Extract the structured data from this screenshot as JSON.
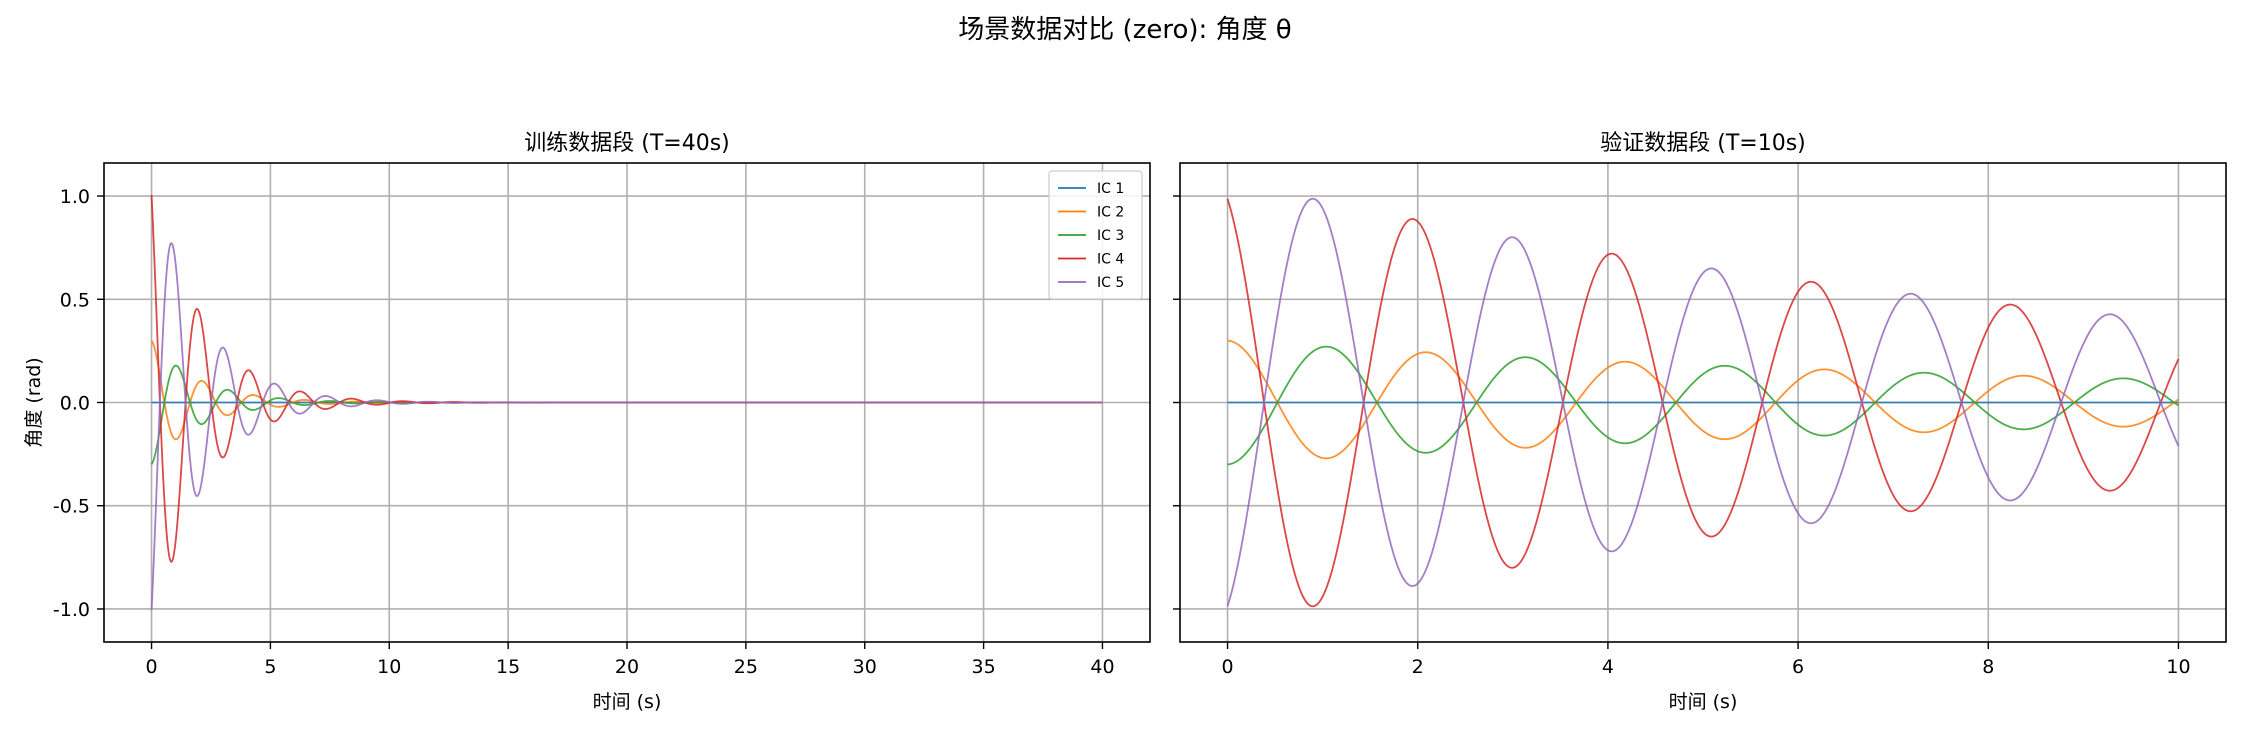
{
  "suptitle": "场景数据对比 (zero): 角度 θ",
  "chart_data": [
    {
      "type": "line",
      "title": "训练数据段 (T=40s)",
      "xlabel": "时间 (s)",
      "ylabel": "角度 (rad)",
      "xlim": [
        -2,
        42
      ],
      "ylim": [
        -1.16,
        1.16
      ],
      "xticks": [
        0,
        5,
        10,
        15,
        20,
        25,
        30,
        35,
        40
      ],
      "yticks": [
        -1.0,
        -0.5,
        0.0,
        0.5,
        1.0
      ],
      "grid": true,
      "legend": "top-right",
      "x_range": [
        0,
        40
      ],
      "series": [
        {
          "name": "IC 1",
          "color": "#1f77b4",
          "A": 0.0,
          "phi": 0.0,
          "omega": 2.95,
          "zeta": 0.167
        },
        {
          "name": "IC 2",
          "color": "#ff7f0e",
          "A": 0.3,
          "phi": 0.0,
          "omega": 2.95,
          "zeta": 0.167
        },
        {
          "name": "IC 3",
          "color": "#2ca02c",
          "A": 0.3,
          "phi": 3.1416,
          "omega": 2.95,
          "zeta": 0.167
        },
        {
          "name": "IC 4",
          "color": "#d62728",
          "A": 1.18,
          "phi": 0.55,
          "omega": 2.95,
          "zeta": 0.167
        },
        {
          "name": "IC 5",
          "color": "#9467bd",
          "A": 1.18,
          "phi": 3.6916,
          "omega": 2.95,
          "zeta": 0.167
        }
      ]
    },
    {
      "type": "line",
      "title": "验证数据段 (T=10s)",
      "xlabel": "时间 (s)",
      "ylabel": "",
      "xlim": [
        -0.5,
        10.5
      ],
      "ylim": [
        -1.16,
        1.16
      ],
      "xticks": [
        0,
        2,
        4,
        6,
        8,
        10
      ],
      "yticks": [
        -1.0,
        -0.5,
        0.0,
        0.5,
        1.0
      ],
      "grid": true,
      "legend": "none",
      "x_range": [
        0,
        10
      ],
      "series": [
        {
          "name": "IC 1",
          "color": "#1f77b4",
          "A": 0.0,
          "phi": 0.0,
          "omega": 3.0,
          "zeta": 0.0333
        },
        {
          "name": "IC 2",
          "color": "#ff7f0e",
          "A": 0.3,
          "phi": 0.0,
          "omega": 3.0,
          "zeta": 0.0333
        },
        {
          "name": "IC 3",
          "color": "#2ca02c",
          "A": 0.3,
          "phi": 3.1416,
          "omega": 3.0,
          "zeta": 0.0333
        },
        {
          "name": "IC 4",
          "color": "#d62728",
          "A": 1.08,
          "phi": 0.42,
          "omega": 3.0,
          "zeta": 0.0333
        },
        {
          "name": "IC 5",
          "color": "#9467bd",
          "A": 1.08,
          "phi": 3.5616,
          "omega": 3.0,
          "zeta": 0.0333
        }
      ]
    }
  ]
}
